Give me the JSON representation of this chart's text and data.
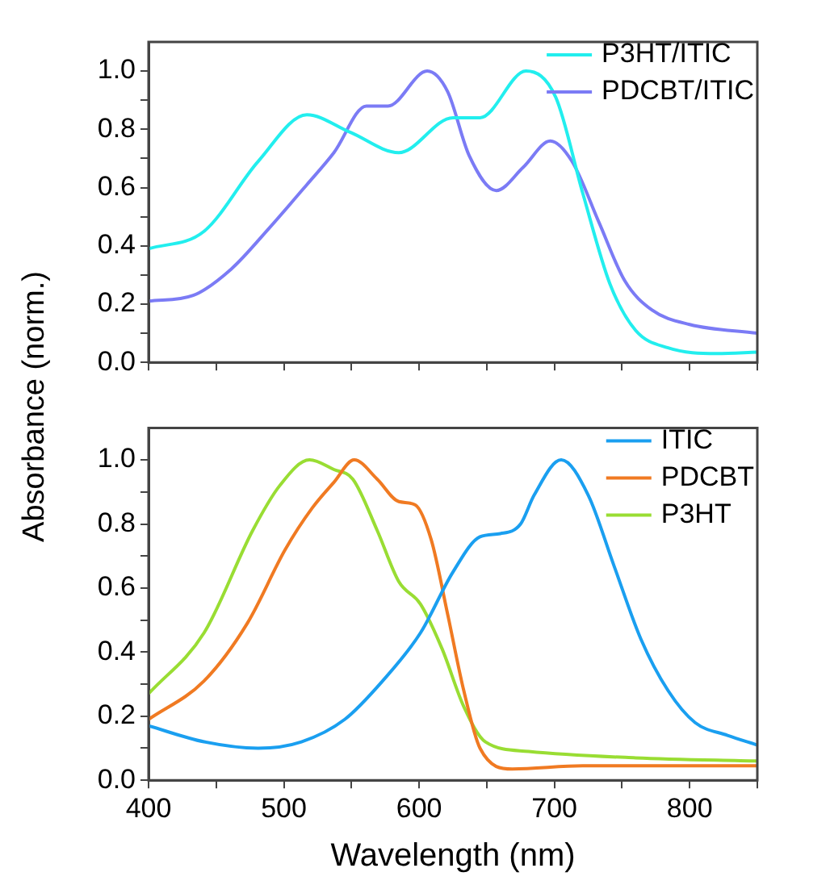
{
  "chart_data": [
    {
      "type": "line",
      "ylabel": "Absorbance (norm.)",
      "xlim": [
        400,
        850
      ],
      "ylim": [
        0,
        1.1
      ],
      "xticks": [
        400,
        {
          "value": 450,
          "label": null
        },
        500,
        {
          "value": 550,
          "label": null
        },
        600,
        {
          "value": 650,
          "label": null
        },
        700,
        {
          "value": 750,
          "label": null
        },
        800,
        {
          "value": 850,
          "label": null
        }
      ],
      "yticks": [
        {
          "value": 0,
          "label": "0.0"
        },
        {
          "value": 0.1,
          "label": null
        },
        0.2,
        {
          "value": 0.3,
          "label": null
        },
        0.4,
        {
          "value": 0.5,
          "label": null
        },
        0.6,
        {
          "value": 0.7,
          "label": null
        },
        0.8,
        {
          "value": 0.9,
          "label": null
        },
        {
          "value": 1,
          "label": "1.0"
        }
      ],
      "tick_labels": "y",
      "legend": "top right",
      "grid": false,
      "series": [
        {
          "name": "P3HT/ITIC",
          "color": "#22eeee",
          "x": [
            400,
            441,
            481,
            517,
            549,
            585,
            625,
            645,
            679,
            701,
            721,
            741,
            760,
            784,
            820,
            850
          ],
          "values": [
            0.39,
            0.45,
            0.69,
            0.85,
            0.79,
            0.72,
            0.84,
            0.84,
            1.0,
            0.91,
            0.58,
            0.27,
            0.11,
            0.05,
            0.03,
            0.035
          ]
        },
        {
          "name": "PDCBT/ITIC",
          "color": "#7b7bf5",
          "x": [
            400,
            433,
            461,
            489,
            517,
            537,
            561,
            577,
            606,
            621,
            637,
            657,
            677,
            697,
            713,
            733,
            752,
            772,
            800,
            850
          ],
          "values": [
            0.21,
            0.23,
            0.32,
            0.46,
            0.61,
            0.72,
            0.88,
            0.88,
            1.0,
            0.93,
            0.71,
            0.59,
            0.67,
            0.76,
            0.69,
            0.48,
            0.28,
            0.18,
            0.13,
            0.1
          ]
        }
      ]
    },
    {
      "type": "line",
      "xlabel": "Wavelength (nm)",
      "xlim": [
        400,
        850
      ],
      "ylim": [
        0,
        1.1
      ],
      "xticks": [
        400,
        {
          "value": 450,
          "label": null
        },
        500,
        {
          "value": 550,
          "label": null
        },
        600,
        {
          "value": 650,
          "label": null
        },
        700,
        {
          "value": 750,
          "label": null
        },
        800,
        {
          "value": 850,
          "label": null
        }
      ],
      "yticks": [
        {
          "value": 0,
          "label": "0.0"
        },
        {
          "value": 0.1,
          "label": null
        },
        0.2,
        {
          "value": 0.3,
          "label": null
        },
        0.4,
        {
          "value": 0.5,
          "label": null
        },
        0.6,
        {
          "value": 0.7,
          "label": null
        },
        0.8,
        {
          "value": 0.9,
          "label": null
        },
        {
          "value": 1,
          "label": "1.0"
        }
      ],
      "legend": "top right",
      "grid": false,
      "series": [
        {
          "name": "ITIC",
          "color": "#1a9ff0",
          "x": [
            400,
            441,
            481,
            513,
            545,
            573,
            601,
            625,
            645,
            660,
            675,
            685,
            705,
            725,
            744,
            764,
            784,
            804,
            828,
            850
          ],
          "values": [
            0.17,
            0.12,
            0.1,
            0.12,
            0.19,
            0.31,
            0.46,
            0.65,
            0.76,
            0.77,
            0.8,
            0.89,
            1.0,
            0.89,
            0.67,
            0.44,
            0.28,
            0.18,
            0.14,
            0.11
          ]
        },
        {
          "name": "PDCBT",
          "color": "#f07a22",
          "x": [
            400,
            441,
            473,
            501,
            521,
            537,
            552,
            569,
            585,
            597,
            609,
            621,
            633,
            645,
            669,
            721,
            850
          ],
          "values": [
            0.19,
            0.31,
            0.49,
            0.72,
            0.85,
            0.93,
            1.0,
            0.94,
            0.87,
            0.86,
            0.75,
            0.52,
            0.28,
            0.1,
            0.035,
            0.045,
            0.045
          ]
        },
        {
          "name": "P3HT",
          "color": "#99dd33",
          "x": [
            400,
            441,
            477,
            497,
            519,
            537,
            551,
            569,
            585,
            601,
            617,
            633,
            649,
            681,
            760,
            850
          ],
          "values": [
            0.27,
            0.46,
            0.78,
            0.92,
            1.0,
            0.97,
            0.94,
            0.78,
            0.62,
            0.55,
            0.41,
            0.23,
            0.12,
            0.09,
            0.07,
            0.06
          ]
        }
      ]
    }
  ]
}
